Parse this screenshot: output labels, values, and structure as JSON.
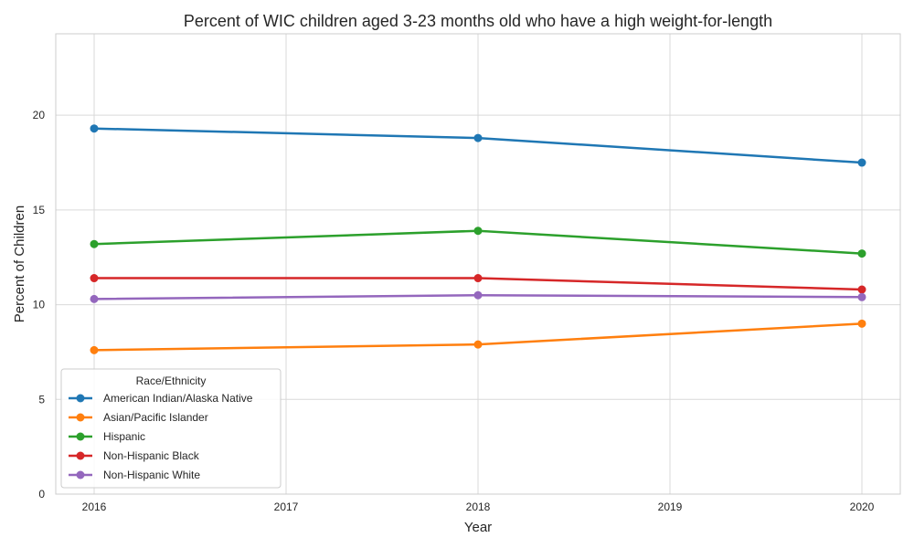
{
  "chart_data": {
    "type": "line",
    "title": "Percent of WIC children aged 3-23 months old who have a high weight-for-length",
    "xlabel": "Year",
    "ylabel": "Percent of Children",
    "x": [
      2016,
      2018,
      2020
    ],
    "xlim": [
      2015.8,
      2020.2
    ],
    "ylim": [
      0,
      24.3
    ],
    "x_ticks": [
      "2016",
      "2017",
      "2018",
      "2019",
      "2020"
    ],
    "y_ticks": [
      "0",
      "5",
      "10",
      "15",
      "20"
    ],
    "grid": true,
    "legend": {
      "title": "Race/Ethnicity",
      "position": "lower-left"
    },
    "series": [
      {
        "name": "American Indian/Alaska Native",
        "color": "#1f77b4",
        "values": [
          19.3,
          18.8,
          17.5
        ]
      },
      {
        "name": "Asian/Pacific Islander",
        "color": "#ff7f0e",
        "values": [
          7.6,
          7.9,
          9.0
        ]
      },
      {
        "name": "Hispanic",
        "color": "#2ca02c",
        "values": [
          13.2,
          13.9,
          12.7
        ]
      },
      {
        "name": "Non-Hispanic Black",
        "color": "#d62728",
        "values": [
          11.4,
          11.4,
          10.8
        ]
      },
      {
        "name": "Non-Hispanic White",
        "color": "#9467bd",
        "values": [
          10.3,
          10.5,
          10.4
        ]
      }
    ]
  }
}
